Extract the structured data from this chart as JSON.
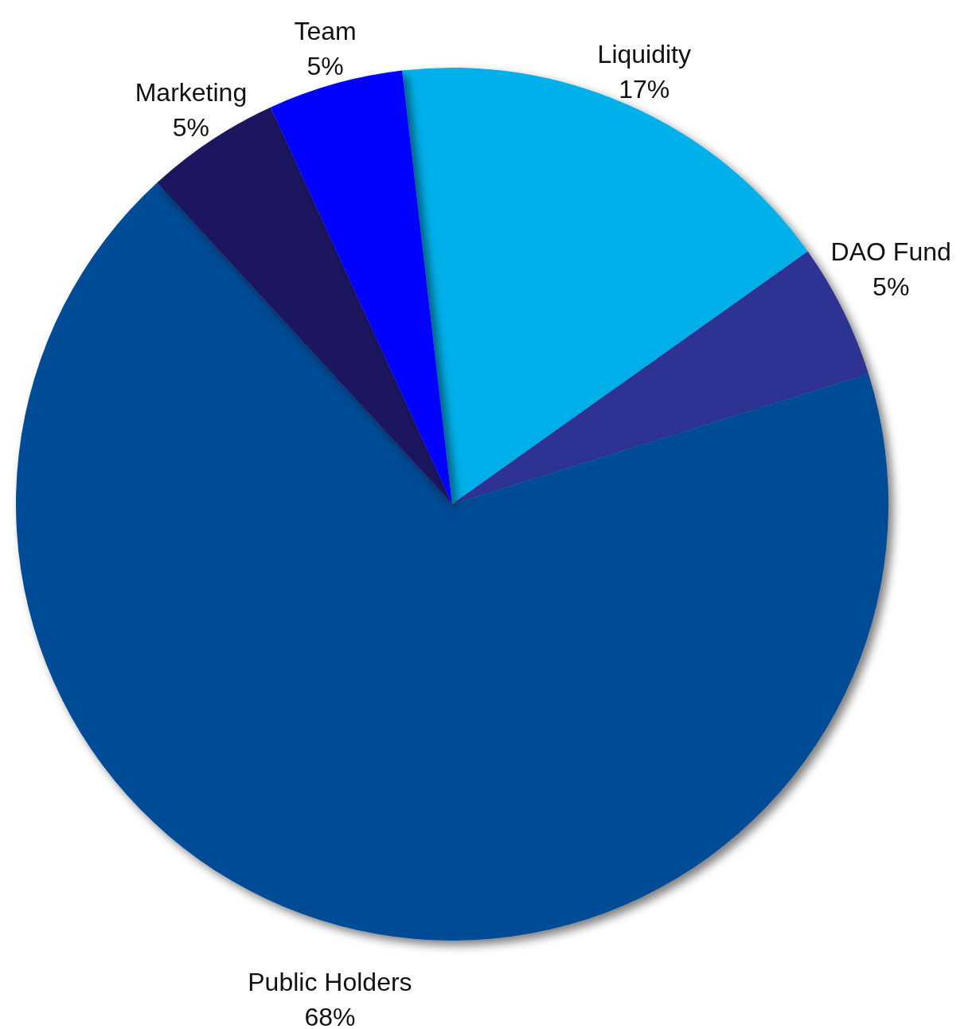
{
  "chart_data": {
    "type": "pie",
    "categories": [
      "Liquidity",
      "DAO Fund",
      "Public Holders",
      "Marketing",
      "Team"
    ],
    "values": [
      17,
      5,
      68,
      5,
      5
    ],
    "colors": [
      "#00b0ea",
      "#2e3092",
      "#004b96",
      "#1c1660",
      "#0000ff"
    ],
    "value_labels": [
      "17%",
      "5%",
      "68%",
      "5%",
      "5%"
    ],
    "legend": false
  }
}
